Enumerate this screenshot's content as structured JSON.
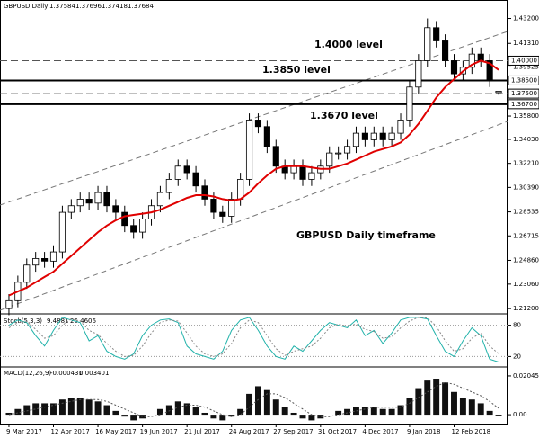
{
  "chart_data": {
    "type": "candlestick",
    "header": {
      "symbol": "GBPUSD,Daily"
    },
    "categories": [
      "9 Mar 2017",
      null,
      null,
      null,
      null,
      "12 Apr 2017",
      null,
      null,
      null,
      null,
      "16 May 2017",
      null,
      null,
      null,
      null,
      "19 Jun 2017",
      null,
      null,
      null,
      null,
      "21 Jul 2017",
      null,
      null,
      null,
      null,
      "24 Aug 2017",
      null,
      null,
      null,
      null,
      "27 Sep 2017",
      null,
      null,
      null,
      null,
      "31 Oct 2017",
      null,
      null,
      null,
      null,
      "4 Dec 2017",
      null,
      null,
      null,
      null,
      "9 Jan 2018",
      null,
      null,
      null,
      null,
      "12 Feb 2018",
      null,
      null,
      null,
      null,
      null
    ],
    "open": [
      1.212,
      1.218,
      1.232,
      1.245,
      1.25,
      1.248,
      1.255,
      1.285,
      1.29,
      1.295,
      1.292,
      1.3,
      1.29,
      1.285,
      1.275,
      1.27,
      1.28,
      1.29,
      1.3,
      1.31,
      1.32,
      1.315,
      1.305,
      1.295,
      1.285,
      1.282,
      1.295,
      1.31,
      1.355,
      1.35,
      1.335,
      1.32,
      1.315,
      1.32,
      1.31,
      1.315,
      1.32,
      1.33,
      1.33,
      1.335,
      1.345,
      1.34,
      1.345,
      1.34,
      1.345,
      1.355,
      1.38,
      1.4,
      1.425,
      1.415,
      1.4,
      1.39,
      1.395,
      1.405,
      1.4,
      1.37584
    ],
    "high": [
      1.223,
      1.237,
      1.25,
      1.255,
      1.255,
      1.26,
      1.29,
      1.295,
      1.3,
      1.3,
      1.305,
      1.305,
      1.295,
      1.29,
      1.28,
      1.285,
      1.295,
      1.305,
      1.315,
      1.325,
      1.325,
      1.32,
      1.31,
      1.3,
      1.29,
      1.3,
      1.315,
      1.36,
      1.36,
      1.355,
      1.34,
      1.325,
      1.325,
      1.325,
      1.32,
      1.325,
      1.335,
      1.335,
      1.34,
      1.35,
      1.35,
      1.35,
      1.35,
      1.35,
      1.36,
      1.385,
      1.405,
      1.432,
      1.43,
      1.42,
      1.405,
      1.4,
      1.41,
      1.41,
      1.405,
      1.37696
    ],
    "low": [
      1.207,
      1.213,
      1.227,
      1.24,
      1.243,
      1.243,
      1.25,
      1.28,
      1.285,
      1.287,
      1.287,
      1.285,
      1.28,
      1.27,
      1.265,
      1.265,
      1.275,
      1.285,
      1.295,
      1.305,
      1.31,
      1.3,
      1.29,
      1.28,
      1.277,
      1.277,
      1.29,
      1.305,
      1.345,
      1.33,
      1.315,
      1.31,
      1.31,
      1.305,
      1.305,
      1.31,
      1.315,
      1.325,
      1.325,
      1.33,
      1.335,
      1.335,
      1.335,
      1.335,
      1.34,
      1.35,
      1.375,
      1.395,
      1.41,
      1.395,
      1.385,
      1.385,
      1.39,
      1.395,
      1.38,
      1.37418
    ],
    "close": [
      1.218,
      1.232,
      1.245,
      1.25,
      1.248,
      1.255,
      1.285,
      1.29,
      1.295,
      1.292,
      1.3,
      1.29,
      1.285,
      1.275,
      1.27,
      1.28,
      1.29,
      1.3,
      1.31,
      1.32,
      1.315,
      1.305,
      1.295,
      1.285,
      1.282,
      1.295,
      1.31,
      1.355,
      1.35,
      1.335,
      1.32,
      1.315,
      1.32,
      1.31,
      1.315,
      1.32,
      1.33,
      1.33,
      1.335,
      1.345,
      1.34,
      1.345,
      1.34,
      1.345,
      1.355,
      1.38,
      1.4,
      1.425,
      1.415,
      1.4,
      1.39,
      1.395,
      1.405,
      1.4,
      1.385,
      1.37684
    ],
    "ylim": [
      1.208,
      1.446
    ],
    "yticks": [
      {
        "value": 1.432,
        "label": "1.43200"
      },
      {
        "value": 1.4131,
        "label": "1.41310"
      },
      {
        "value": 1.39525,
        "label": "1.39525"
      },
      {
        "value": 1.358,
        "label": "1.35800"
      },
      {
        "value": 1.3403,
        "label": "1.34030"
      },
      {
        "value": 1.3221,
        "label": "1.32210"
      },
      {
        "value": 1.3039,
        "label": "1.30390"
      },
      {
        "value": 1.28535,
        "label": "1.28535"
      },
      {
        "value": 1.26715,
        "label": "1.26715"
      },
      {
        "value": 1.2486,
        "label": "1.24860"
      },
      {
        "value": 1.2306,
        "label": "1.23060"
      },
      {
        "value": 1.212,
        "label": "1.21200"
      }
    ],
    "levels": [
      {
        "value": 1.4,
        "label": "1.40000",
        "style": "dashed"
      },
      {
        "value": 1.385,
        "label": "1.38500",
        "style": "solid"
      },
      {
        "value": 1.375,
        "label": "1.37500",
        "style": "dashed"
      },
      {
        "value": 1.367,
        "label": "1.36700",
        "style": "solid"
      }
    ],
    "annotations": [
      "1.4000 level",
      "1.3850 level",
      "1.3670 level",
      "GBPUSD Daily timeframe"
    ],
    "ma": {
      "color": "#e00000",
      "values": [
        1.222,
        1.225,
        1.228,
        1.232,
        1.236,
        1.24,
        1.246,
        1.252,
        1.258,
        1.264,
        1.27,
        1.275,
        1.279,
        1.282,
        1.283,
        1.284,
        1.285,
        1.287,
        1.29,
        1.293,
        1.296,
        1.298,
        1.298,
        1.297,
        1.295,
        1.294,
        1.295,
        1.3,
        1.307,
        1.313,
        1.318,
        1.32,
        1.32,
        1.32,
        1.319,
        1.318,
        1.318,
        1.32,
        1.322,
        1.325,
        1.328,
        1.331,
        1.333,
        1.335,
        1.338,
        1.344,
        1.352,
        1.362,
        1.372,
        1.38,
        1.386,
        1.392,
        1.397,
        1.4,
        1.398,
        1.393
      ]
    },
    "stoch": {
      "label": "Stoch(5,3,3)",
      "ylim": [
        0,
        100
      ],
      "yticks": [
        80,
        20
      ],
      "k": {
        "color": "#20b2aa",
        "values": [
          80,
          90,
          85,
          60,
          40,
          70,
          95,
          90,
          85,
          50,
          60,
          30,
          20,
          15,
          25,
          60,
          80,
          90,
          92,
          85,
          40,
          25,
          20,
          15,
          30,
          70,
          90,
          95,
          70,
          40,
          20,
          15,
          40,
          30,
          50,
          70,
          85,
          80,
          75,
          90,
          60,
          70,
          45,
          65,
          90,
          95,
          95,
          92,
          60,
          30,
          20,
          50,
          75,
          60,
          15,
          9.4881
        ]
      },
      "d": {
        "color": "#888888",
        "values": [
          75,
          85,
          87,
          72,
          55,
          60,
          80,
          92,
          88,
          70,
          62,
          45,
          30,
          20,
          22,
          40,
          65,
          85,
          90,
          88,
          65,
          40,
          25,
          20,
          25,
          45,
          75,
          90,
          85,
          60,
          35,
          22,
          30,
          35,
          40,
          55,
          75,
          82,
          78,
          82,
          72,
          68,
          55,
          58,
          75,
          88,
          95,
          94,
          78,
          50,
          30,
          35,
          55,
          65,
          40,
          25.4606
        ]
      }
    },
    "macd": {
      "label": "MACD(12,26,9)",
      "ylim": [
        -0.0047,
        0.0247
      ],
      "yticks": [
        0.020456,
        {
          "value": 0,
          "label": "0.00"
        }
      ],
      "hist": {
        "color": "#111111",
        "values": [
          0.001,
          0.003,
          0.005,
          0.006,
          0.006,
          0.006,
          0.008,
          0.009,
          0.009,
          0.008,
          0.007,
          0.005,
          0.002,
          -0.001,
          -0.003,
          -0.002,
          0.0,
          0.003,
          0.005,
          0.007,
          0.006,
          0.004,
          0.001,
          -0.002,
          -0.003,
          -0.001,
          0.003,
          0.011,
          0.015,
          0.013,
          0.008,
          0.004,
          0.001,
          -0.002,
          -0.003,
          -0.002,
          0.0,
          0.002,
          0.003,
          0.004,
          0.004,
          0.004,
          0.003,
          0.003,
          0.005,
          0.009,
          0.014,
          0.018,
          0.019,
          0.017,
          0.012,
          0.009,
          0.008,
          0.006,
          0.002,
          -0.000431
        ]
      },
      "signal": {
        "color": "#555555",
        "values": [
          0.0,
          0.001,
          0.002,
          0.003,
          0.004,
          0.005,
          0.006,
          0.007,
          0.008,
          0.008,
          0.008,
          0.007,
          0.005,
          0.003,
          0.001,
          -0.001,
          -0.001,
          0.0,
          0.002,
          0.004,
          0.005,
          0.005,
          0.004,
          0.002,
          0.0,
          -0.001,
          0.0,
          0.004,
          0.008,
          0.011,
          0.011,
          0.009,
          0.006,
          0.003,
          0.0,
          -0.001,
          -0.001,
          0.0,
          0.001,
          0.002,
          0.003,
          0.004,
          0.004,
          0.004,
          0.004,
          0.006,
          0.009,
          0.012,
          0.015,
          0.017,
          0.016,
          0.014,
          0.012,
          0.01,
          0.007,
          0.003401
        ]
      }
    }
  }
}
